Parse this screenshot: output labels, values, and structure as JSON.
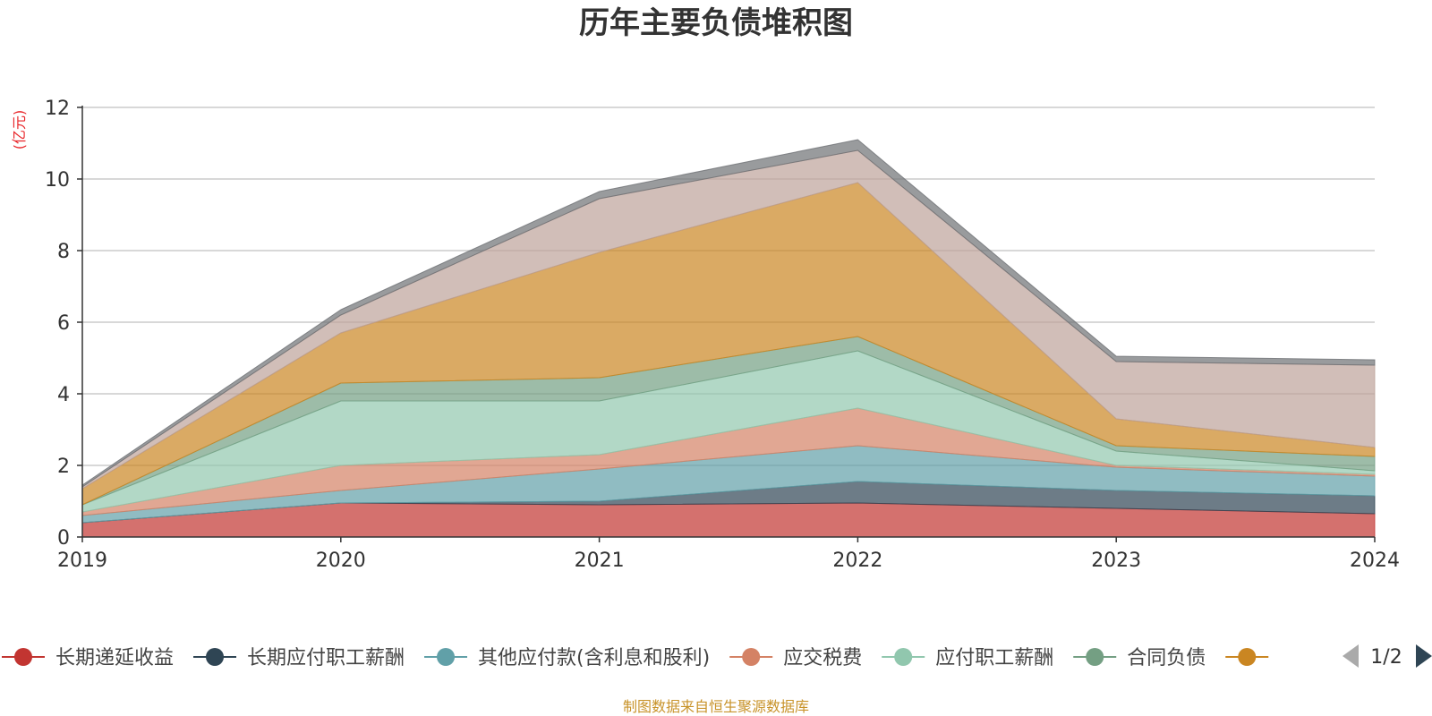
{
  "chart_data": {
    "type": "area",
    "stacked": true,
    "title": "历年主要负债堆积图",
    "unit_label": "(亿元)",
    "x": [
      "2019",
      "2020",
      "2021",
      "2022",
      "2023",
      "2024"
    ],
    "ylim": [
      0,
      12
    ],
    "yticks": [
      0,
      2,
      4,
      6,
      8,
      10,
      12
    ],
    "grid": true,
    "legend_position": "bottom",
    "series": [
      {
        "name": "长期递延收益",
        "color": "#c23531",
        "values": [
          0.4,
          0.95,
          0.9,
          0.95,
          0.8,
          0.65
        ]
      },
      {
        "name": "长期应付职工薪酬",
        "color": "#2f4554",
        "values": [
          0.0,
          0.0,
          0.1,
          0.6,
          0.5,
          0.5
        ]
      },
      {
        "name": "其他应付款(含利息和股利)",
        "color": "#61a0a8",
        "values": [
          0.2,
          0.35,
          0.9,
          1.0,
          0.65,
          0.55
        ]
      },
      {
        "name": "应交税费",
        "color": "#d48265",
        "values": [
          0.1,
          0.7,
          0.4,
          1.05,
          0.05,
          0.05
        ]
      },
      {
        "name": "应付职工薪酬",
        "color": "#91c7ae",
        "values": [
          0.2,
          1.8,
          1.5,
          1.6,
          0.4,
          0.1
        ]
      },
      {
        "name": "合同负债",
        "color": "#749f83",
        "values": [
          0.0,
          0.5,
          0.65,
          0.4,
          0.15,
          0.4
        ]
      },
      {
        "name": "",
        "color": "#ca8622",
        "values": [
          0.45,
          1.4,
          3.5,
          4.3,
          0.75,
          0.25
        ]
      },
      {
        "name": "",
        "color": "#bda29a",
        "values": [
          0.05,
          0.5,
          1.5,
          0.9,
          1.6,
          2.3
        ]
      },
      {
        "name": "",
        "color": "#6e7074",
        "values": [
          0.05,
          0.15,
          0.2,
          0.3,
          0.15,
          0.15
        ]
      }
    ]
  },
  "legend": {
    "visible_count": 7,
    "page_text": "1/2"
  },
  "source_text": "制图数据来自恒生聚源数据库"
}
